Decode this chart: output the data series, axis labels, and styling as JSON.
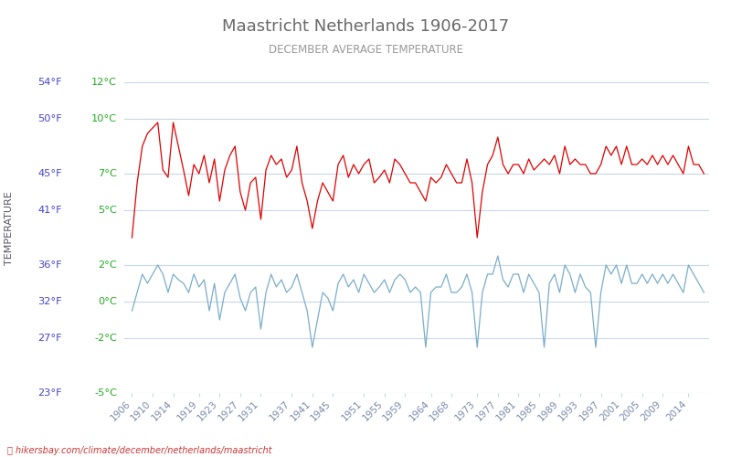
{
  "title": "Maastricht Netherlands 1906-2017",
  "subtitle": "DECEMBER AVERAGE TEMPERATURE",
  "ylabel": "TEMPERATURE",
  "xlabel_url": "hikersbay.com/climate/december/netherlands/maastricht",
  "years": [
    1906,
    1907,
    1908,
    1909,
    1910,
    1911,
    1912,
    1913,
    1914,
    1915,
    1916,
    1917,
    1918,
    1919,
    1920,
    1921,
    1922,
    1923,
    1924,
    1925,
    1926,
    1927,
    1928,
    1929,
    1930,
    1931,
    1932,
    1933,
    1934,
    1935,
    1936,
    1937,
    1938,
    1939,
    1940,
    1941,
    1942,
    1943,
    1944,
    1945,
    1946,
    1947,
    1948,
    1949,
    1950,
    1951,
    1952,
    1953,
    1954,
    1955,
    1956,
    1957,
    1958,
    1959,
    1960,
    1961,
    1962,
    1963,
    1964,
    1965,
    1966,
    1967,
    1968,
    1969,
    1970,
    1971,
    1972,
    1973,
    1974,
    1975,
    1976,
    1977,
    1978,
    1979,
    1980,
    1981,
    1982,
    1983,
    1984,
    1985,
    1986,
    1987,
    1988,
    1989,
    1990,
    1991,
    1992,
    1993,
    1994,
    1995,
    1996,
    1997,
    1998,
    1999,
    2000,
    2001,
    2002,
    2003,
    2004,
    2005,
    2006,
    2007,
    2008,
    2009,
    2010,
    2011,
    2012,
    2013,
    2014,
    2015,
    2016,
    2017
  ],
  "day_temps": [
    3.5,
    6.5,
    8.5,
    9.2,
    9.5,
    9.8,
    7.2,
    6.8,
    9.8,
    8.5,
    7.2,
    5.8,
    7.5,
    7.0,
    8.0,
    6.5,
    7.8,
    5.5,
    7.2,
    8.0,
    8.5,
    6.0,
    5.0,
    6.5,
    6.8,
    4.5,
    7.2,
    8.0,
    7.5,
    7.8,
    6.8,
    7.2,
    8.5,
    6.5,
    5.5,
    4.0,
    5.5,
    6.5,
    6.0,
    5.5,
    7.5,
    8.0,
    6.8,
    7.5,
    7.0,
    7.5,
    7.8,
    6.5,
    6.8,
    7.2,
    6.5,
    7.8,
    7.5,
    7.0,
    6.5,
    6.5,
    6.0,
    5.5,
    6.8,
    6.5,
    6.8,
    7.5,
    7.0,
    6.5,
    6.5,
    7.8,
    6.5,
    3.5,
    6.0,
    7.5,
    8.0,
    9.0,
    7.5,
    7.0,
    7.5,
    7.5,
    7.0,
    7.8,
    7.2,
    7.5,
    7.8,
    7.5,
    8.0,
    7.0,
    8.5,
    7.5,
    7.8,
    7.5,
    7.5,
    7.0,
    7.0,
    7.5,
    8.5,
    8.0,
    8.5,
    7.5,
    8.5,
    7.5,
    7.5,
    7.8,
    7.5,
    8.0,
    7.5,
    8.0,
    7.5,
    8.0,
    7.5,
    7.0,
    8.5,
    7.5,
    7.5,
    7.0
  ],
  "night_temps": [
    -0.5,
    0.5,
    1.5,
    1.0,
    1.5,
    2.0,
    1.5,
    0.5,
    1.5,
    1.2,
    1.0,
    0.5,
    1.5,
    0.8,
    1.2,
    -0.5,
    1.0,
    -1.0,
    0.5,
    1.0,
    1.5,
    0.2,
    -0.5,
    0.5,
    0.8,
    -1.5,
    0.5,
    1.5,
    0.8,
    1.2,
    0.5,
    0.8,
    1.5,
    0.5,
    -0.5,
    -2.5,
    -1.0,
    0.5,
    0.2,
    -0.5,
    1.0,
    1.5,
    0.8,
    1.2,
    0.5,
    1.5,
    1.0,
    0.5,
    0.8,
    1.2,
    0.5,
    1.2,
    1.5,
    1.2,
    0.5,
    0.8,
    0.5,
    -2.5,
    0.5,
    0.8,
    0.8,
    1.5,
    0.5,
    0.5,
    0.8,
    1.5,
    0.5,
    -2.5,
    0.5,
    1.5,
    1.5,
    2.5,
    1.2,
    0.8,
    1.5,
    1.5,
    0.5,
    1.5,
    1.0,
    0.5,
    -2.5,
    1.0,
    1.5,
    0.5,
    2.0,
    1.5,
    0.5,
    1.5,
    0.8,
    0.5,
    -2.5,
    0.5,
    2.0,
    1.5,
    2.0,
    1.0,
    2.0,
    1.0,
    1.0,
    1.5,
    1.0,
    1.5,
    1.0,
    1.5,
    1.0,
    1.5,
    1.0,
    0.5,
    2.0,
    1.5,
    1.0,
    0.5
  ],
  "day_color": "#e00000",
  "night_color": "#7aadca",
  "background_color": "#ffffff",
  "grid_color": "#c8d8e8",
  "title_color": "#696969",
  "subtitle_color": "#999999",
  "ylabel_color": "#555566",
  "ytick_celsius_color": "#22aa22",
  "ytick_fahrenheit_color": "#4444cc",
  "xtick_color": "#7a8aaa",
  "ylim_min": -5,
  "ylim_max": 12,
  "yticks_celsius": [
    -5,
    -2,
    0,
    2,
    5,
    7,
    10,
    12
  ],
  "yticks_fahrenheit": [
    23,
    27,
    32,
    36,
    41,
    45,
    50,
    54
  ],
  "xtick_labels": [
    "1906",
    "1910",
    "1914",
    "1919",
    "1923",
    "1927",
    "1931",
    "1937",
    "1941",
    "1945",
    "1951",
    "1955",
    "1959",
    "1964",
    "1968",
    "1973",
    "1977",
    "1981",
    "1985",
    "1989",
    "1993",
    "1997",
    "2001",
    "2005",
    "2009",
    "2014"
  ],
  "xtick_positions": [
    1906,
    1910,
    1914,
    1919,
    1923,
    1927,
    1931,
    1937,
    1941,
    1945,
    1951,
    1955,
    1959,
    1964,
    1968,
    1973,
    1977,
    1981,
    1985,
    1989,
    1993,
    1997,
    2001,
    2005,
    2009,
    2014
  ]
}
